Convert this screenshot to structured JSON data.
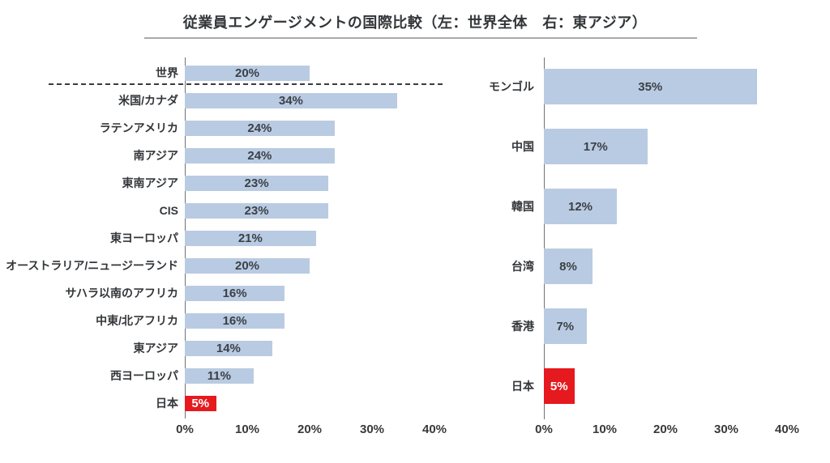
{
  "title": "従業員エンゲージメントの国際比較（左：世界全体　右：東アジア）",
  "colors": {
    "bar": "#b9cbe2",
    "highlight": "#e6191e",
    "label_text": "#333639",
    "value_text": "#3c4047",
    "value_text_highlight": "#ffffff",
    "axis_line": "#6f7378",
    "title_rule": "#a9a9a9",
    "separator": "#3c3c3c"
  },
  "chart_data": [
    {
      "type": "bar",
      "orientation": "horizontal",
      "name": "世界全体",
      "categories": [
        "世界",
        "米国/カナダ",
        "ラテンアメリカ",
        "南アジア",
        "東南アジア",
        "CIS",
        "東ヨーロッパ",
        "オーストラリア/ニュージーランド",
        "サハラ以南のアフリカ",
        "中東/北アフリカ",
        "東アジア",
        "西ヨーロッパ",
        "日本"
      ],
      "values": [
        20,
        34,
        24,
        24,
        23,
        23,
        21,
        20,
        16,
        16,
        14,
        11,
        5
      ],
      "value_labels": [
        "20%",
        "34%",
        "24%",
        "24%",
        "23%",
        "23%",
        "21%",
        "20%",
        "16%",
        "16%",
        "14%",
        "11%",
        "5%"
      ],
      "highlight_index": 12,
      "xlim": [
        0,
        40
      ],
      "x_ticks": [
        "0%",
        "10%",
        "20%",
        "30%",
        "40%"
      ],
      "separator_after_index": 0,
      "legend": "none",
      "grid": "off"
    },
    {
      "type": "bar",
      "orientation": "horizontal",
      "name": "東アジア",
      "categories": [
        "モンゴル",
        "中国",
        "韓国",
        "台湾",
        "香港",
        "日本"
      ],
      "values": [
        35,
        17,
        12,
        8,
        7,
        5
      ],
      "value_labels": [
        "35%",
        "17%",
        "12%",
        "8%",
        "7%",
        "5%"
      ],
      "highlight_index": 5,
      "xlim": [
        0,
        40
      ],
      "x_ticks": [
        "0%",
        "10%",
        "20%",
        "30%",
        "40%"
      ],
      "legend": "none",
      "grid": "off"
    }
  ]
}
